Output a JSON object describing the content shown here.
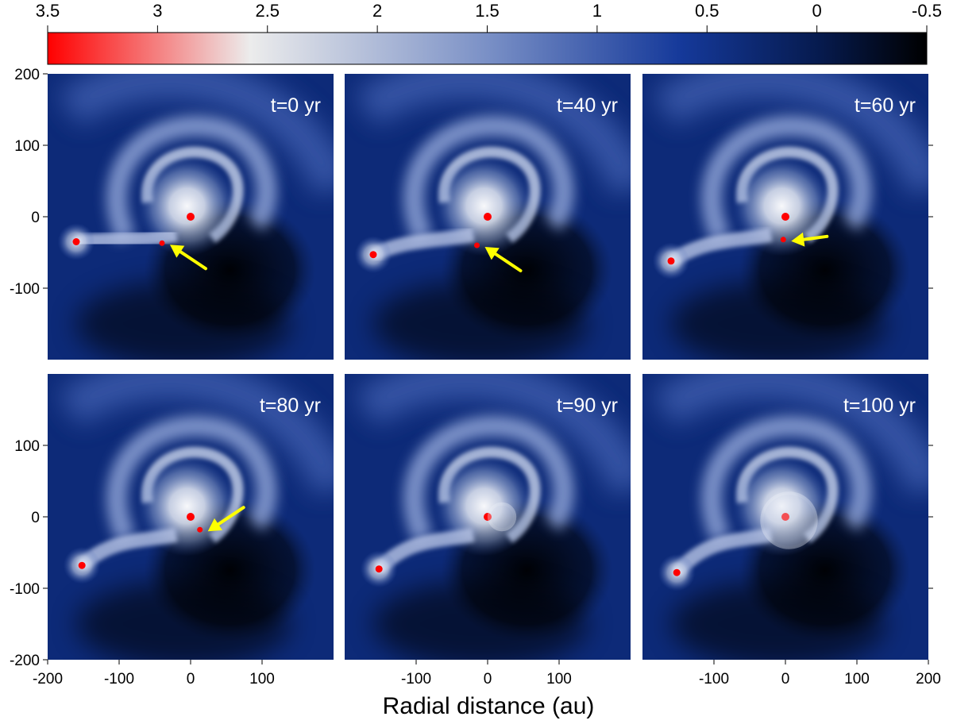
{
  "chart_data": {
    "type": "heatmap",
    "description_note": "",
    "colorbar": {
      "ticks": [
        "3.5",
        "3",
        "2.5",
        "2",
        "1.5",
        "1",
        "0.5",
        "0",
        "-0.5"
      ],
      "range": [
        3.5,
        -0.5
      ],
      "colors": [
        "#ff0000",
        "#e5e5e5",
        "#5f7fbf",
        "#133a9a",
        "#000000"
      ]
    },
    "xlabel": "Radial distance (au)",
    "x_range": [
      -200,
      200
    ],
    "y_range": [
      -200,
      200
    ],
    "panels": [
      {
        "label": "t=0 yr",
        "clump": [
          -40,
          -37
        ],
        "arrow": true,
        "companion": [
          -160,
          -35
        ]
      },
      {
        "label": "t=40 yr",
        "clump": [
          -15,
          -40
        ],
        "arrow": true,
        "companion": [
          -160,
          -53
        ]
      },
      {
        "label": "t=60 yr",
        "clump": [
          -3,
          -32
        ],
        "arrow": true,
        "companion": [
          -160,
          -62
        ]
      },
      {
        "label": "t=80 yr",
        "clump": [
          13,
          -18
        ],
        "arrow": true,
        "companion": [
          -152,
          -68
        ]
      },
      {
        "label": "t=90 yr",
        "clump": null,
        "arrow": false,
        "companion": [
          -152,
          -73
        ]
      },
      {
        "label": "t=100 yr",
        "clump": null,
        "arrow": false,
        "companion": [
          -152,
          -78
        ]
      }
    ],
    "tick_labels": {
      "left_top": [
        "200",
        "100",
        "0",
        "-100"
      ],
      "left_bottom": [
        "100",
        "0",
        "-100",
        "-200"
      ],
      "bottom_col1": [
        "-200",
        "-100",
        "0",
        "100"
      ],
      "bottom_col2": [
        "-100",
        "0",
        "100"
      ],
      "bottom_col3": [
        "-100",
        "0",
        "100",
        "200"
      ]
    },
    "colors": {
      "arrow": "#ffff00",
      "star": "#ff0000",
      "time_label": "#ffffff"
    }
  }
}
